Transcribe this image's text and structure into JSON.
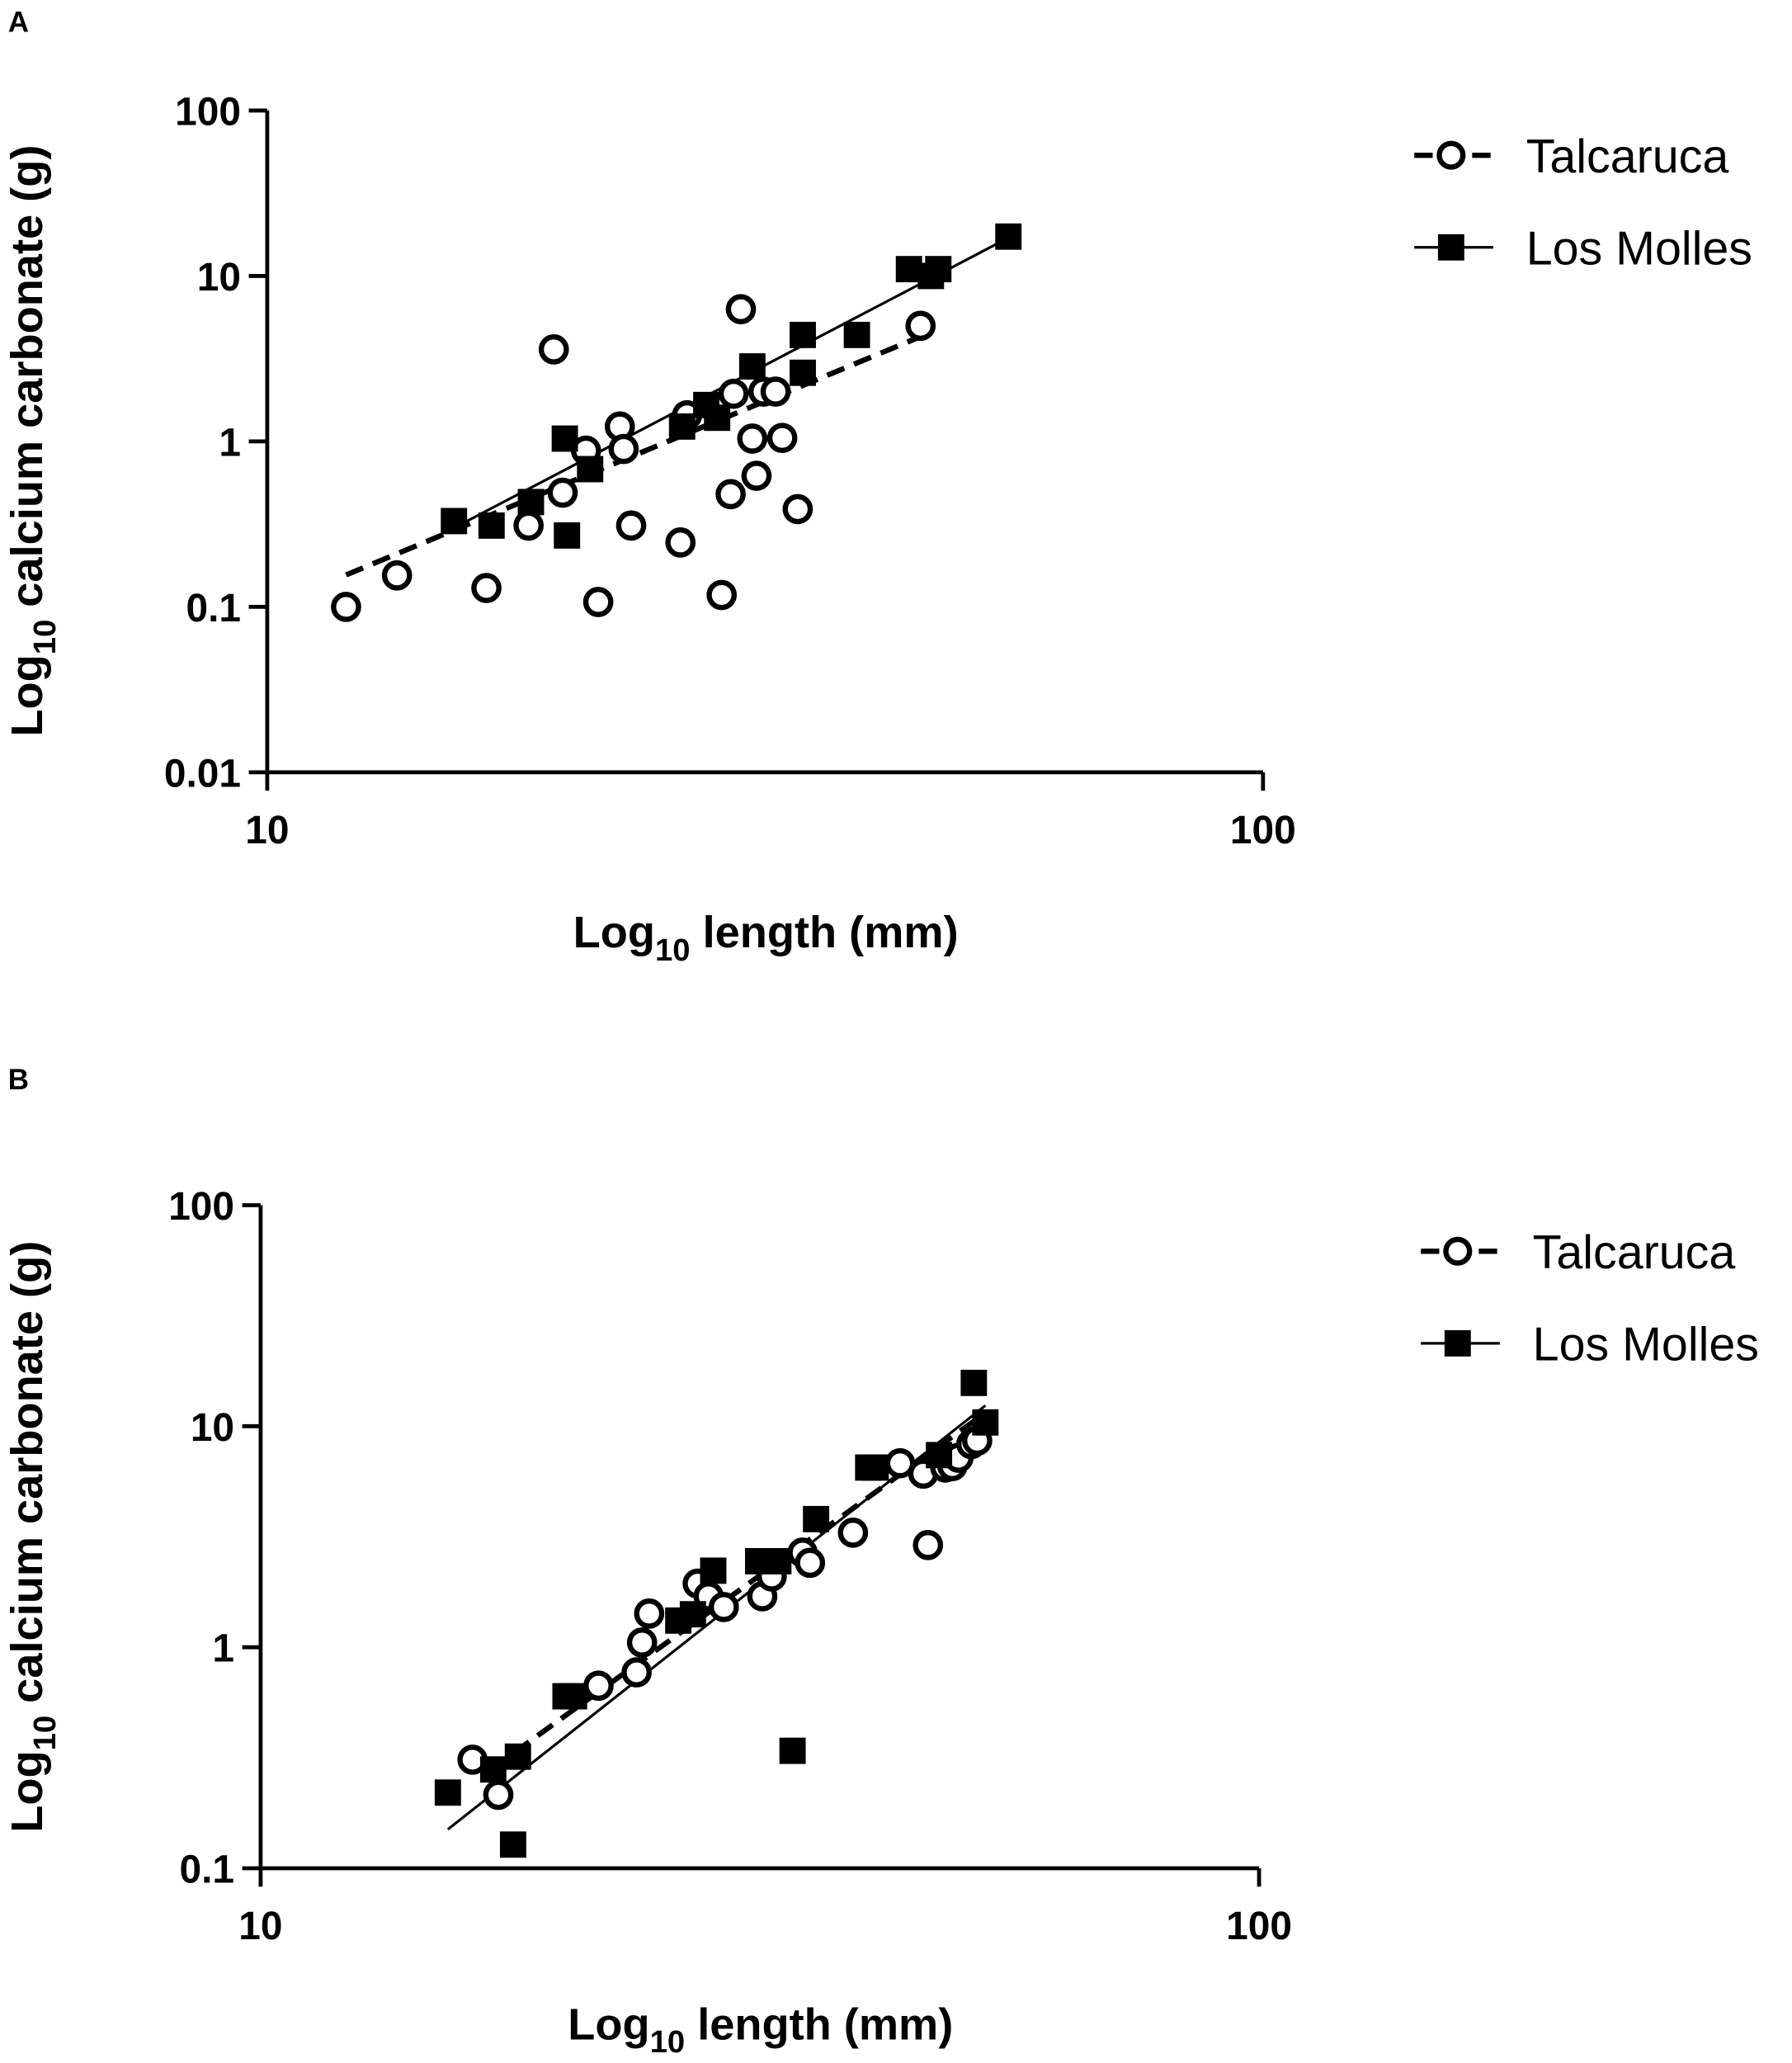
{
  "chart_data": [
    {
      "panel_label": "A",
      "type": "scatter",
      "xscale": "log",
      "yscale": "log",
      "xlabel": {
        "main": "Log",
        "sub": "10",
        "rest": " length (mm)"
      },
      "ylabel": {
        "main": "Log",
        "sub": "10",
        "rest": " calcium carbonate (g)"
      },
      "xlim": [
        10,
        100
      ],
      "ylim": [
        0.01,
        100
      ],
      "xticks": [
        10,
        100
      ],
      "xtick_labels": [
        "10",
        "100"
      ],
      "yticks": [
        0.01,
        0.1,
        1,
        10,
        100
      ],
      "ytick_labels": [
        "0.01",
        "0.1",
        "1",
        "10",
        "100"
      ],
      "legend_position": "top-right",
      "series": [
        {
          "name": "Talcaruca",
          "marker": "open-circle",
          "line": "dashed",
          "fit": [
            [
              12.0,
              0.156
            ],
            [
              45.3,
              4.3
            ]
          ],
          "points": [
            [
              12.0,
              0.1
            ],
            [
              13.5,
              0.155
            ],
            [
              16.6,
              0.13
            ],
            [
              18.3,
              0.31
            ],
            [
              19.4,
              3.6
            ],
            [
              19.8,
              0.49
            ],
            [
              20.9,
              0.88
            ],
            [
              21.5,
              0.107
            ],
            [
              22.6,
              1.23
            ],
            [
              22.8,
              0.9
            ],
            [
              23.2,
              0.31
            ],
            [
              26.0,
              0.245
            ],
            [
              26.4,
              1.44
            ],
            [
              28.6,
              0.118
            ],
            [
              29.2,
              0.48
            ],
            [
              29.4,
              1.94
            ],
            [
              29.9,
              6.3
            ],
            [
              30.7,
              1.04
            ],
            [
              31.0,
              0.62
            ],
            [
              31.5,
              2.0
            ],
            [
              32.4,
              2.0
            ],
            [
              32.9,
              1.05
            ],
            [
              34.1,
              0.39
            ],
            [
              45.3,
              5.0
            ]
          ]
        },
        {
          "name": "Los Molles",
          "marker": "filled-square",
          "line": "solid",
          "fit": [
            [
              15.4,
              0.3
            ],
            [
              55.5,
              17.0
            ]
          ],
          "points": [
            [
              15.4,
              0.33
            ],
            [
              16.8,
              0.31
            ],
            [
              18.4,
              0.43
            ],
            [
              19.9,
              1.04
            ],
            [
              20.0,
              0.27
            ],
            [
              21.1,
              0.68
            ],
            [
              26.1,
              1.23
            ],
            [
              27.6,
              1.66
            ],
            [
              28.3,
              1.39
            ],
            [
              30.7,
              2.84
            ],
            [
              34.5,
              4.4
            ],
            [
              34.5,
              2.6
            ],
            [
              39.1,
              4.4
            ],
            [
              44.1,
              11.0
            ],
            [
              46.4,
              10.0
            ],
            [
              47.2,
              11.0
            ],
            [
              55.5,
              17.3
            ]
          ]
        }
      ]
    },
    {
      "panel_label": "B",
      "type": "scatter",
      "xscale": "log",
      "yscale": "log",
      "xlabel": {
        "main": "Log",
        "sub": "10",
        "rest": " length (mm)"
      },
      "ylabel": {
        "main": "Log",
        "sub": "10",
        "rest": " calcium carbonate (g)"
      },
      "xlim": [
        10,
        100
      ],
      "ylim": [
        0.1,
        100
      ],
      "xticks": [
        10,
        100
      ],
      "xtick_labels": [
        "10",
        "100"
      ],
      "yticks": [
        0.1,
        1,
        10,
        100
      ],
      "ytick_labels": [
        "0.1",
        "1",
        "10",
        "100"
      ],
      "legend_position": "top-right",
      "series": [
        {
          "name": "Talcaruca",
          "marker": "open-circle",
          "line": "dashed",
          "fit": [
            [
              17.0,
              0.28
            ],
            [
              52.5,
              11.0
            ]
          ],
          "points": [
            [
              16.3,
              0.31
            ],
            [
              17.3,
              0.215
            ],
            [
              21.8,
              0.67
            ],
            [
              23.8,
              0.77
            ],
            [
              24.1,
              1.05
            ],
            [
              24.5,
              1.42
            ],
            [
              27.4,
              1.94
            ],
            [
              28.1,
              1.7
            ],
            [
              29.1,
              1.52
            ],
            [
              31.8,
              1.7
            ],
            [
              32.5,
              2.09
            ],
            [
              34.9,
              2.68
            ],
            [
              35.5,
              2.41
            ],
            [
              39.2,
              3.3
            ],
            [
              43.7,
              6.8
            ],
            [
              46.1,
              6.1
            ],
            [
              46.6,
              2.9
            ],
            [
              48.5,
              6.5
            ],
            [
              49.3,
              6.6
            ],
            [
              50.0,
              7.2
            ],
            [
              51.5,
              8.3
            ],
            [
              52.2,
              8.6
            ]
          ]
        },
        {
          "name": "Los Molles",
          "marker": "filled-square",
          "line": "solid",
          "fit": [
            [
              15.4,
              0.15
            ],
            [
              53.2,
              12.4
            ]
          ],
          "points": [
            [
              15.4,
              0.22
            ],
            [
              17.1,
              0.28
            ],
            [
              17.9,
              0.128
            ],
            [
              18.1,
              0.32
            ],
            [
              20.2,
              0.6
            ],
            [
              20.6,
              0.6
            ],
            [
              26.2,
              1.32
            ],
            [
              27.1,
              1.41
            ],
            [
              28.4,
              2.22
            ],
            [
              31.5,
              2.45
            ],
            [
              33.0,
              2.45
            ],
            [
              34.1,
              0.34
            ],
            [
              36.0,
              3.8
            ],
            [
              40.6,
              6.5
            ],
            [
              41.3,
              6.5
            ],
            [
              47.8,
              7.4
            ],
            [
              51.8,
              15.7
            ],
            [
              53.2,
              10.4
            ]
          ]
        }
      ]
    }
  ]
}
